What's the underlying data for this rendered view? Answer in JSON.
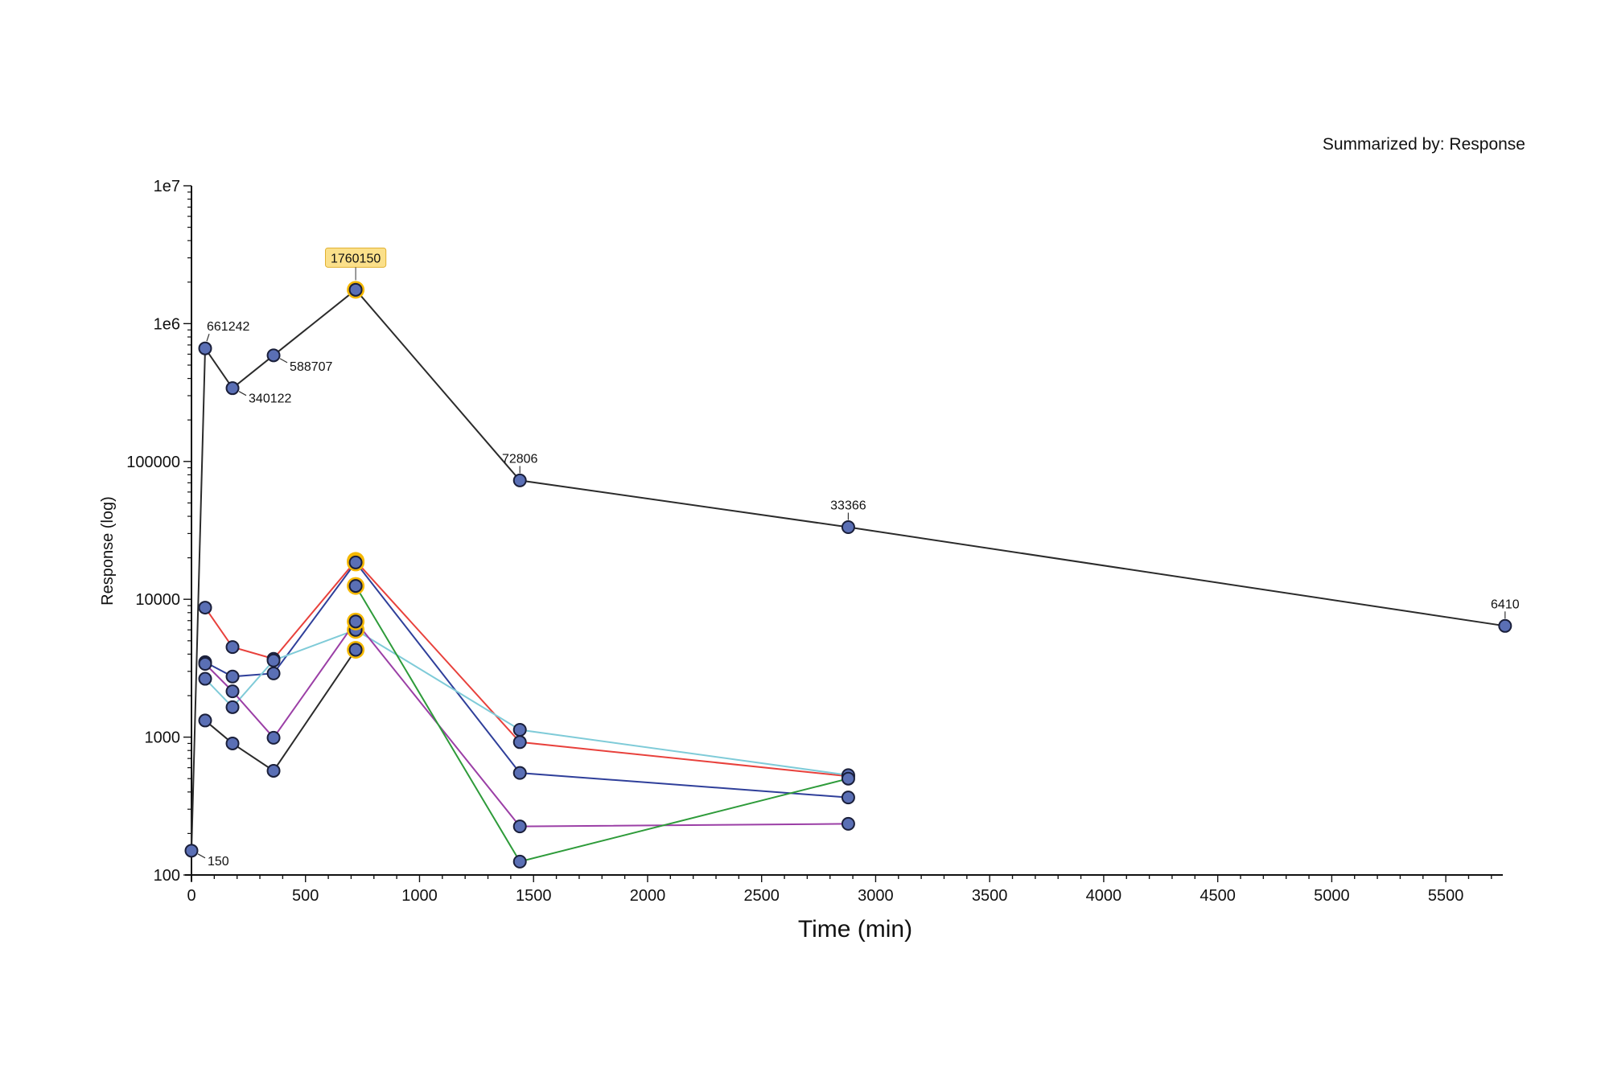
{
  "summary": "Summarized by: Response",
  "chart_data": {
    "type": "line",
    "xlabel": "Time (min)",
    "ylabel": "Response (log)",
    "yscale": "log",
    "xlim": [
      0,
      5750
    ],
    "ylim": [
      100,
      10000000
    ],
    "x_ticks": [
      0,
      500,
      1000,
      1500,
      2000,
      2500,
      3000,
      3500,
      4000,
      4500,
      5000,
      5500
    ],
    "y_ticks": [
      {
        "value": 100,
        "label": "100"
      },
      {
        "value": 1000,
        "label": "1000"
      },
      {
        "value": 10000,
        "label": "10000"
      },
      {
        "value": 100000,
        "label": "100000"
      },
      {
        "value": 1000000,
        "label": "1e6"
      },
      {
        "value": 10000000,
        "label": "1e7"
      }
    ],
    "highlight_color": "#f5b800",
    "marker_color": "#5a6fb5",
    "series": [
      {
        "color": "#2b2b2b",
        "points": [
          [
            0,
            150
          ],
          [
            60,
            661242
          ],
          [
            180,
            340122
          ],
          [
            360,
            588707
          ],
          [
            720,
            1760150
          ],
          [
            1440,
            72806
          ],
          [
            2880,
            33366
          ],
          [
            5760,
            6410
          ]
        ],
        "labels": [
          "150",
          "661242",
          "340122",
          "588707",
          "1760150",
          "72806",
          "33366",
          "6410"
        ],
        "highlight": [
          4
        ]
      },
      {
        "color": "#e8413c",
        "points": [
          [
            60,
            8700
          ],
          [
            180,
            4500
          ],
          [
            360,
            3700
          ],
          [
            720,
            19000
          ],
          [
            1440,
            920
          ],
          [
            2880,
            520
          ]
        ],
        "highlight": [
          3
        ]
      },
      {
        "color": "#2f3f9a",
        "points": [
          [
            60,
            3500
          ],
          [
            180,
            2750
          ],
          [
            360,
            2900
          ],
          [
            720,
            18500
          ],
          [
            1440,
            550
          ],
          [
            2880,
            365
          ]
        ],
        "highlight": [
          3
        ]
      },
      {
        "color": "#7fcbd8",
        "points": [
          [
            60,
            2650
          ],
          [
            180,
            1650
          ],
          [
            360,
            3600
          ],
          [
            720,
            6000
          ],
          [
            1440,
            1130
          ],
          [
            2880,
            530
          ]
        ],
        "highlight": [
          3
        ]
      },
      {
        "color": "#9b3fa6",
        "points": [
          [
            60,
            3400
          ],
          [
            180,
            2150
          ],
          [
            360,
            990
          ],
          [
            720,
            6900
          ],
          [
            1440,
            225
          ],
          [
            2880,
            235
          ]
        ],
        "highlight": [
          3
        ]
      },
      {
        "color": "#2e9b3a",
        "points": [
          [
            720,
            12500
          ],
          [
            1440,
            125
          ],
          [
            2880,
            500
          ]
        ],
        "highlight": [
          0
        ]
      },
      {
        "color": "#2b2b2b",
        "points": [
          [
            60,
            1320
          ],
          [
            180,
            900
          ],
          [
            360,
            570
          ],
          [
            720,
            4300
          ]
        ],
        "highlight": [
          3
        ]
      }
    ]
  }
}
